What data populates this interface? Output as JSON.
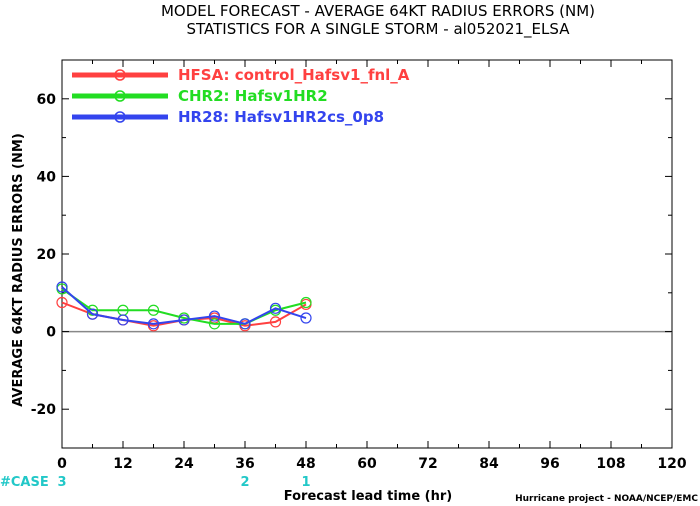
{
  "title_line1": "MODEL FORECAST - AVERAGE 64KT RADIUS ERRORS (NM)",
  "title_line2": "STATISTICS FOR A SINGLE STORM - al052021_ELSA",
  "case_label": "#CASE",
  "case_values": [
    {
      "x": 0,
      "label": "3"
    },
    {
      "x": 36,
      "label": "2"
    },
    {
      "x": 48,
      "label": "1"
    }
  ],
  "footer": "Hurricane project - NOAA/NCEP/EMC",
  "colors": {
    "HFSA": "#ff4040",
    "CHR2": "#22dd22",
    "HR28": "#3344ee",
    "case": "#22c8c8",
    "axis": "#000000",
    "zero": "#888888"
  },
  "chart_data": {
    "type": "line",
    "xlabel": "Forecast lead time (hr)",
    "ylabel": "AVERAGE 64KT RADIUS ERRORS (NM)",
    "xlim": [
      0,
      120
    ],
    "ylim": [
      -30,
      70
    ],
    "xticks": [
      0,
      12,
      24,
      36,
      48,
      60,
      72,
      84,
      96,
      108,
      120
    ],
    "yticks": [
      -20,
      0,
      20,
      40,
      60
    ],
    "legend_position": "top-left",
    "x": [
      0,
      6,
      12,
      18,
      24,
      30,
      36,
      42,
      48
    ],
    "series": [
      {
        "key": "HFSA",
        "name": "HFSA: control_Hafsv1_fnl_A",
        "color": "#ff4040",
        "values": [
          7.5,
          4.5,
          3.0,
          1.5,
          3.0,
          3.5,
          1.5,
          2.5,
          7.0
        ]
      },
      {
        "key": "CHR2",
        "name": "CHR2: Hafsv1HR2",
        "color": "#22dd22",
        "values": [
          11.0,
          5.5,
          5.5,
          5.5,
          3.5,
          2.0,
          2.0,
          5.5,
          7.5
        ]
      },
      {
        "key": "HR28",
        "name": "HR28: Hafsv1HR2cs_0p8",
        "color": "#3344ee",
        "values": [
          11.5,
          4.5,
          3.0,
          2.0,
          3.0,
          4.0,
          2.0,
          6.0,
          3.5
        ]
      }
    ]
  }
}
